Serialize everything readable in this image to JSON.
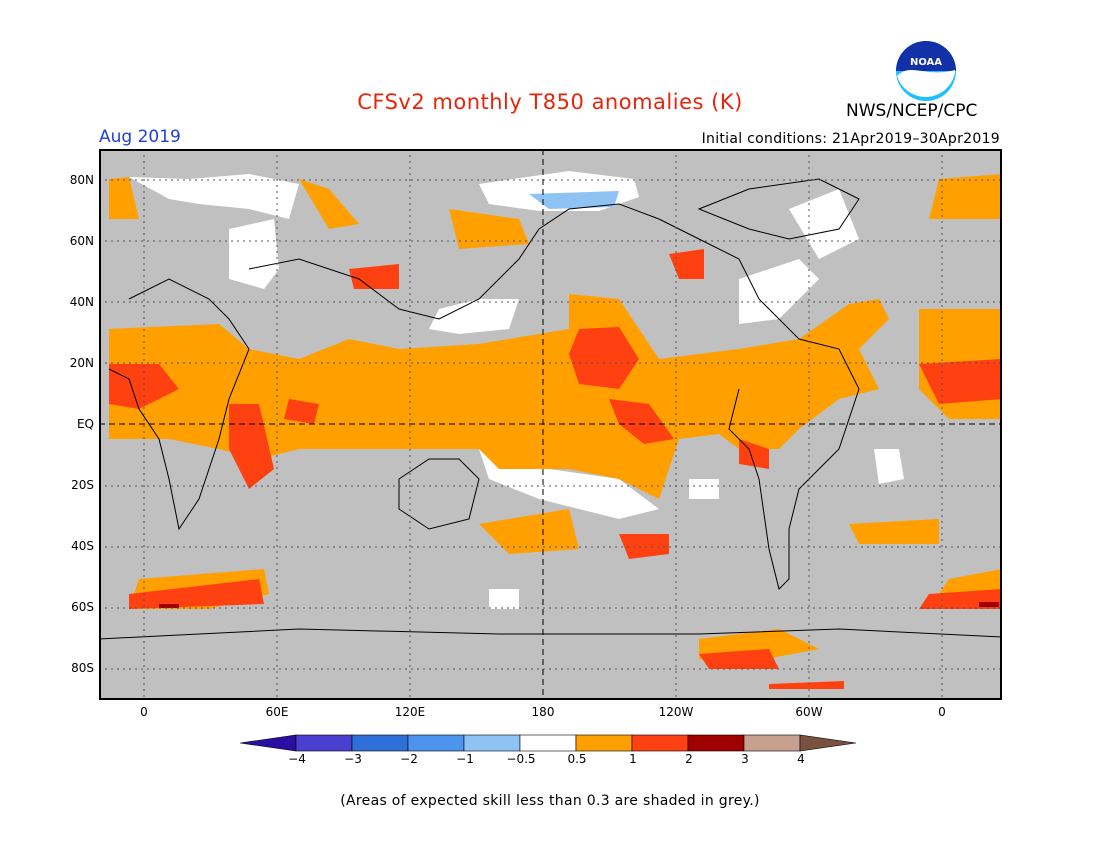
{
  "title": "CFSv2 monthly T850 anomalies (K)",
  "valid_month": "Aug 2019",
  "initial_conditions": "Initial conditions: 21Apr2019–30Apr2019",
  "agency": "NWS/NCEP/CPC",
  "logo": {
    "icon": "noaa-logo-icon",
    "text": "NOAA"
  },
  "map": {
    "projection": "cylindrical-equidistant",
    "land_color": "#c0c0c0",
    "lat_labels": [
      "80N",
      "60N",
      "40N",
      "20N",
      "EQ",
      "20S",
      "40S",
      "60S",
      "80S"
    ],
    "lon_labels": [
      "0",
      "60E",
      "120E",
      "180",
      "120W",
      "60W",
      "0"
    ]
  },
  "colorbar": {
    "labels": [
      "−4",
      "−3",
      "−2",
      "−1",
      "−0.5",
      "0.5",
      "1",
      "2",
      "3",
      "4"
    ],
    "colors": [
      "#2a0fa3",
      "#4a40d0",
      "#2f6fd8",
      "#4d94ef",
      "#8fc3f4",
      "#ffffff",
      "#ff9f00",
      "#ff4010",
      "#a00000",
      "#c8a090",
      "#7a5040"
    ]
  },
  "footnote": "(Areas of expected skill less than 0.3 are shaded in grey.)"
}
